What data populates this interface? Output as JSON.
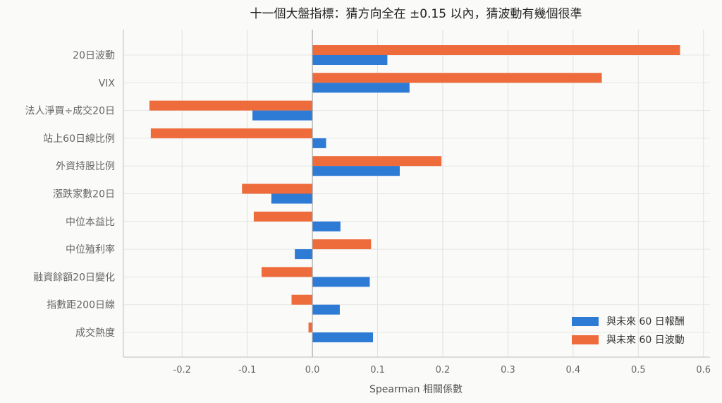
{
  "chart_data": {
    "type": "bar",
    "orientation": "horizontal",
    "title": "十一個大盤指標：猜方向全在 ±0.15 以內，猜波動有幾個很準",
    "xlabel": "Spearman 相關係數",
    "ylabel": "",
    "categories": [
      "20日波動",
      "VIX",
      "法人淨買÷成交20日",
      "站上60日線比例",
      "外資持股比例",
      "漲跌家數20日",
      "中位本益比",
      "中位殖利率",
      "融資餘額20日變化",
      "指數距200日線",
      "成交熱度"
    ],
    "series": [
      {
        "name": "與未來 60 日報酬",
        "color": "#2e7bd6",
        "values": [
          0.115,
          0.149,
          -0.092,
          0.021,
          0.134,
          -0.063,
          0.043,
          -0.027,
          0.088,
          0.042,
          0.093
        ]
      },
      {
        "name": "與未來 60 日波動",
        "color": "#ee6b3b",
        "values": [
          0.564,
          0.444,
          -0.25,
          -0.248,
          0.198,
          -0.108,
          -0.09,
          0.09,
          -0.078,
          -0.032,
          -0.006
        ]
      }
    ],
    "xlim": [
      -0.29,
      0.61
    ],
    "xticks": [
      "-0.2",
      "-0.1",
      "0.0",
      "0.1",
      "0.2",
      "0.3",
      "0.4",
      "0.5",
      "0.6"
    ],
    "grid": true,
    "legend_position": "bottom-right"
  }
}
